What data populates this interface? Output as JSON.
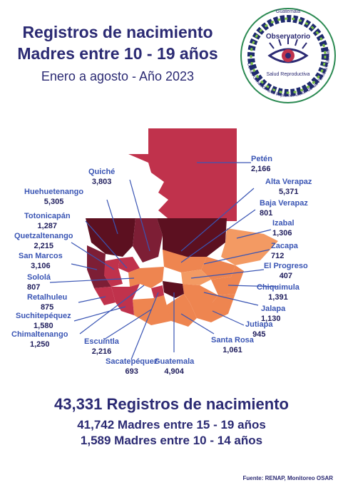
{
  "header": {
    "title_line1": "Registros de nacimiento",
    "title_line2": "Madres entre 10 - 19 años",
    "subtitle": "Enero a agosto - Año 2023"
  },
  "logo": {
    "top_text": "Guatemala",
    "name": "Observatorio",
    "sub": "Salud Reproductiva",
    "ring_text": "De la Formación a la Implementación de las Políticas Públicas",
    "icon": "eye-icon"
  },
  "departments": [
    {
      "name": "Petén",
      "value": "2,166"
    },
    {
      "name": "Quiché",
      "value": "3,803"
    },
    {
      "name": "Huehuetenango",
      "value": "5,305"
    },
    {
      "name": "Alta Verapaz",
      "value": "5,371"
    },
    {
      "name": "Totonicapán",
      "value": "1,287"
    },
    {
      "name": "Baja Verapaz",
      "value": "801"
    },
    {
      "name": "Quetzaltenango",
      "value": "2,215"
    },
    {
      "name": "Izabal",
      "value": "1,306"
    },
    {
      "name": "San Marcos",
      "value": "3,106"
    },
    {
      "name": "Zacapa",
      "value": "712"
    },
    {
      "name": "Sololá",
      "value": "807"
    },
    {
      "name": "El Progreso",
      "value": "407"
    },
    {
      "name": "Retalhuleu",
      "value": "875"
    },
    {
      "name": "Chiquimula",
      "value": "1,391"
    },
    {
      "name": "Suchitepéquez",
      "value": "1,580"
    },
    {
      "name": "Jalapa",
      "value": "1,130"
    },
    {
      "name": "Chimaltenango",
      "value": "1,250"
    },
    {
      "name": "Jutiapa",
      "value": "945"
    },
    {
      "name": "Escuintla",
      "value": "2,216"
    },
    {
      "name": "Santa Rosa",
      "value": "1,061"
    },
    {
      "name": "Sacatepéquez",
      "value": "693"
    },
    {
      "name": "Guatemala",
      "value": "4,904"
    }
  ],
  "totals": {
    "total_value": "43,331",
    "total_label": "Registros de nacimiento",
    "line2": "41,742 Madres entre 15 - 19 años",
    "line3": "1,589 Madres entre 10 - 14 años"
  },
  "source": "Fuente: RENAP, Monitoreo OSAR",
  "colors": {
    "dark": "#5c1020",
    "wine": "#7d1e35",
    "red": "#c0324c",
    "orange": "#ee8550",
    "light_orange": "#f39a63",
    "navy": "#2b2a73",
    "label_blue": "#3a55b4"
  }
}
